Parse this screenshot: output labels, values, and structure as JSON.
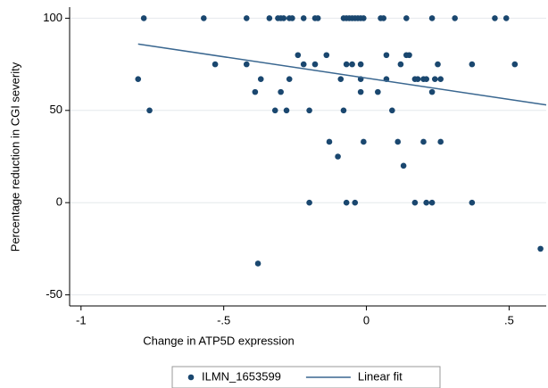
{
  "chart_data": {
    "type": "scatter",
    "xlabel": "Change in ATP5D expression",
    "ylabel": "Percentage reduction in CGI severity",
    "xlim": [
      -1.04,
      0.63
    ],
    "ylim": [
      -56,
      106
    ],
    "xticks": [
      {
        "value": -1,
        "label": "-1"
      },
      {
        "value": -0.5,
        "label": "-.5"
      },
      0,
      {
        "value": 0.5,
        "label": ".5"
      }
    ],
    "yticks": [
      -50,
      0,
      50,
      100
    ],
    "grid": true,
    "legend": "bottom",
    "series": [
      {
        "name": "ILMN_1653599",
        "type": "scatter",
        "color": "#1a476f",
        "x": [
          -0.78,
          -0.57,
          -0.42,
          -0.34,
          -0.31,
          -0.3,
          -0.29,
          -0.27,
          -0.26,
          -0.22,
          -0.18,
          -0.17,
          -0.08,
          -0.07,
          -0.06,
          -0.05,
          -0.04,
          -0.03,
          -0.02,
          -0.01,
          0.05,
          0.06,
          0.14,
          0.23,
          0.31,
          0.45,
          0.49,
          -0.24,
          -0.14,
          0.07,
          0.14,
          0.15,
          -0.53,
          -0.42,
          -0.22,
          -0.18,
          -0.07,
          -0.05,
          -0.02,
          0.12,
          0.25,
          0.37,
          0.52,
          -0.8,
          -0.37,
          -0.27,
          -0.09,
          -0.02,
          0.07,
          0.17,
          0.18,
          0.2,
          0.21,
          0.24,
          0.26,
          -0.39,
          -0.3,
          -0.02,
          0.04,
          0.23,
          -0.76,
          -0.32,
          -0.28,
          -0.2,
          -0.08,
          0.09,
          -0.13,
          -0.01,
          0.11,
          0.2,
          0.26,
          -0.1,
          0.13,
          -0.2,
          -0.07,
          -0.04,
          0.17,
          0.21,
          0.23,
          0.37,
          -0.38,
          0.61
        ],
        "values": [
          100,
          100,
          100,
          100,
          100,
          100,
          100,
          100,
          100,
          100,
          100,
          100,
          100,
          100,
          100,
          100,
          100,
          100,
          100,
          100,
          100,
          100,
          100,
          100,
          100,
          100,
          100,
          80,
          80,
          80,
          80,
          80,
          75,
          75,
          75,
          75,
          75,
          75,
          75,
          75,
          75,
          75,
          75,
          67,
          67,
          67,
          67,
          67,
          67,
          67,
          67,
          67,
          67,
          67,
          67,
          60,
          60,
          60,
          60,
          60,
          50,
          50,
          50,
          50,
          50,
          50,
          33,
          33,
          33,
          33,
          33,
          25,
          20,
          0,
          0,
          0,
          0,
          0,
          0,
          0,
          -33,
          -25
        ]
      },
      {
        "name": "Linear fit",
        "type": "line",
        "color": "#3a6790",
        "x": [
          -0.8,
          0.63
        ],
        "values": [
          86,
          53
        ]
      }
    ]
  }
}
